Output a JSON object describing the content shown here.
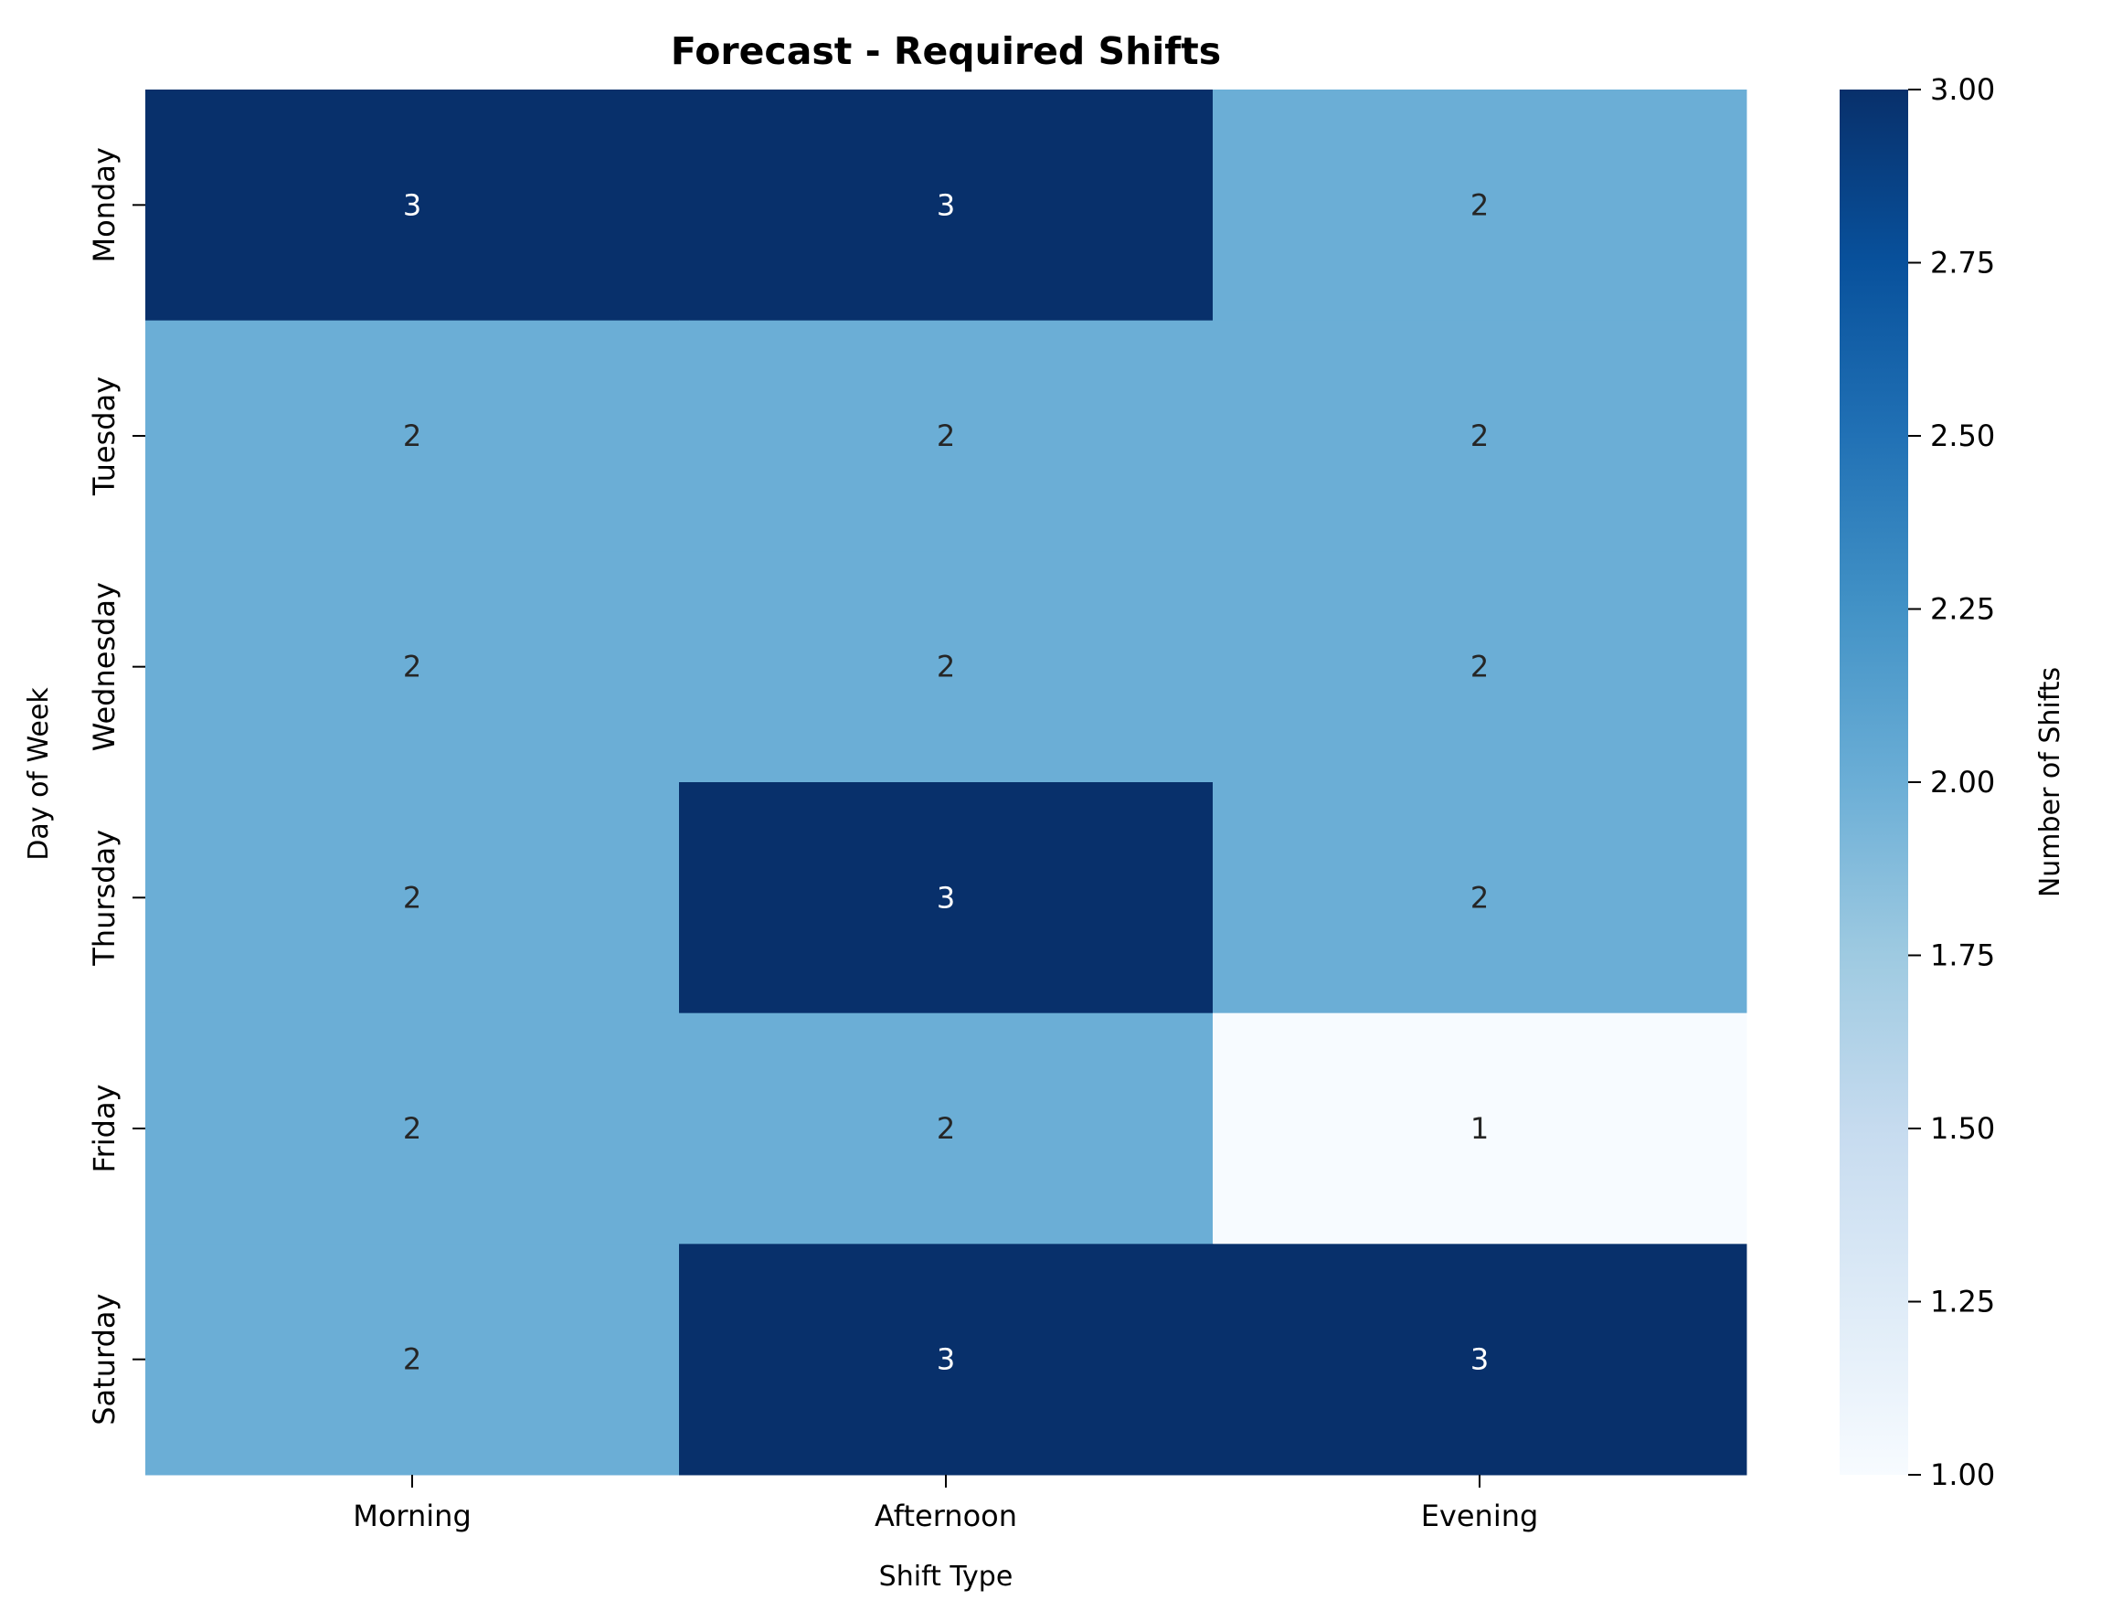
{
  "chart_data": {
    "type": "heatmap",
    "title": "Forecast - Required Shifts",
    "xlabel": "Shift Type",
    "ylabel": "Day of Week",
    "x_categories": [
      "Morning",
      "Afternoon",
      "Evening"
    ],
    "y_categories": [
      "Monday",
      "Tuesday",
      "Wednesday",
      "Thursday",
      "Friday",
      "Saturday"
    ],
    "values": [
      [
        3,
        3,
        2
      ],
      [
        2,
        2,
        2
      ],
      [
        2,
        2,
        2
      ],
      [
        2,
        3,
        2
      ],
      [
        2,
        2,
        1
      ],
      [
        2,
        3,
        3
      ]
    ],
    "colorbar": {
      "label": "Number of Shifts",
      "range": [
        1.0,
        3.0
      ],
      "ticks": [
        "1.00",
        "1.25",
        "1.50",
        "1.75",
        "2.00",
        "2.25",
        "2.50",
        "2.75",
        "3.00"
      ]
    },
    "colormap": "Blues",
    "colors": {
      "low": "#f7fbff",
      "mid": "#6baed6",
      "high": "#08306b"
    },
    "annotation_colors": {
      "on_dark": "#ffffff",
      "on_light": "#262626"
    }
  }
}
